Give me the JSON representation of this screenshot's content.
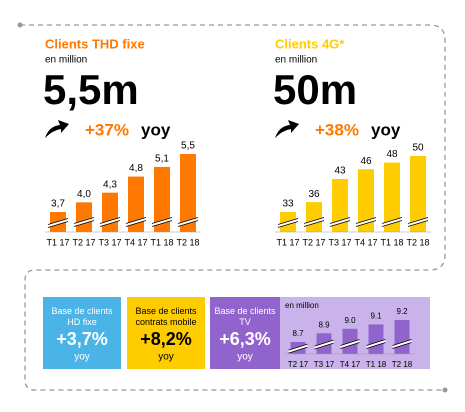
{
  "chart_data": [
    {
      "type": "bar",
      "title": "Clients THD fixe",
      "subtitle": "en million",
      "headline": "5,5m",
      "growth": "+37%",
      "growth_suffix": "yoy",
      "categories": [
        "T1 17",
        "T2 17",
        "T3 17",
        "T4 17",
        "T1 18",
        "T2 18"
      ],
      "values": [
        3.7,
        4.0,
        4.3,
        4.8,
        5.1,
        5.5
      ],
      "value_labels": [
        "3,7",
        "4,0",
        "4,3",
        "4,8",
        "5,1",
        "5,5"
      ],
      "color": "#ff7900"
    },
    {
      "type": "bar",
      "title": "Clients 4G*",
      "subtitle": "en million",
      "headline": "50m",
      "growth": "+38%",
      "growth_suffix": "yoy",
      "categories": [
        "T1 17",
        "T2 17",
        "T3 17",
        "T4 17",
        "T1 18",
        "T2 18"
      ],
      "values": [
        33,
        36,
        43,
        46,
        48,
        50
      ],
      "color": "#ffcc00"
    },
    {
      "type": "bar",
      "subtitle": "en million",
      "categories": [
        "T2 17",
        "T3 17",
        "T4 17",
        "T1 18",
        "T2 18"
      ],
      "values": [
        8.7,
        8.9,
        9.0,
        9.1,
        9.2
      ],
      "value_labels": [
        "8.7",
        "8.9",
        "9.0",
        "9.1",
        "9.2"
      ],
      "color": "#9164cd"
    }
  ],
  "kpis": [
    {
      "label": "Base de clients HD fixe",
      "value": "+3,7%",
      "suffix": "yoy",
      "color": "#4bb4e6"
    },
    {
      "label": "Base de clients contrats mobile",
      "value": "+8,2%",
      "suffix": "yoy",
      "color": "#ffcc00"
    },
    {
      "label": "Base de clients TV",
      "value": "+6,3%",
      "suffix": "yoy",
      "color": "#9164cd"
    }
  ]
}
